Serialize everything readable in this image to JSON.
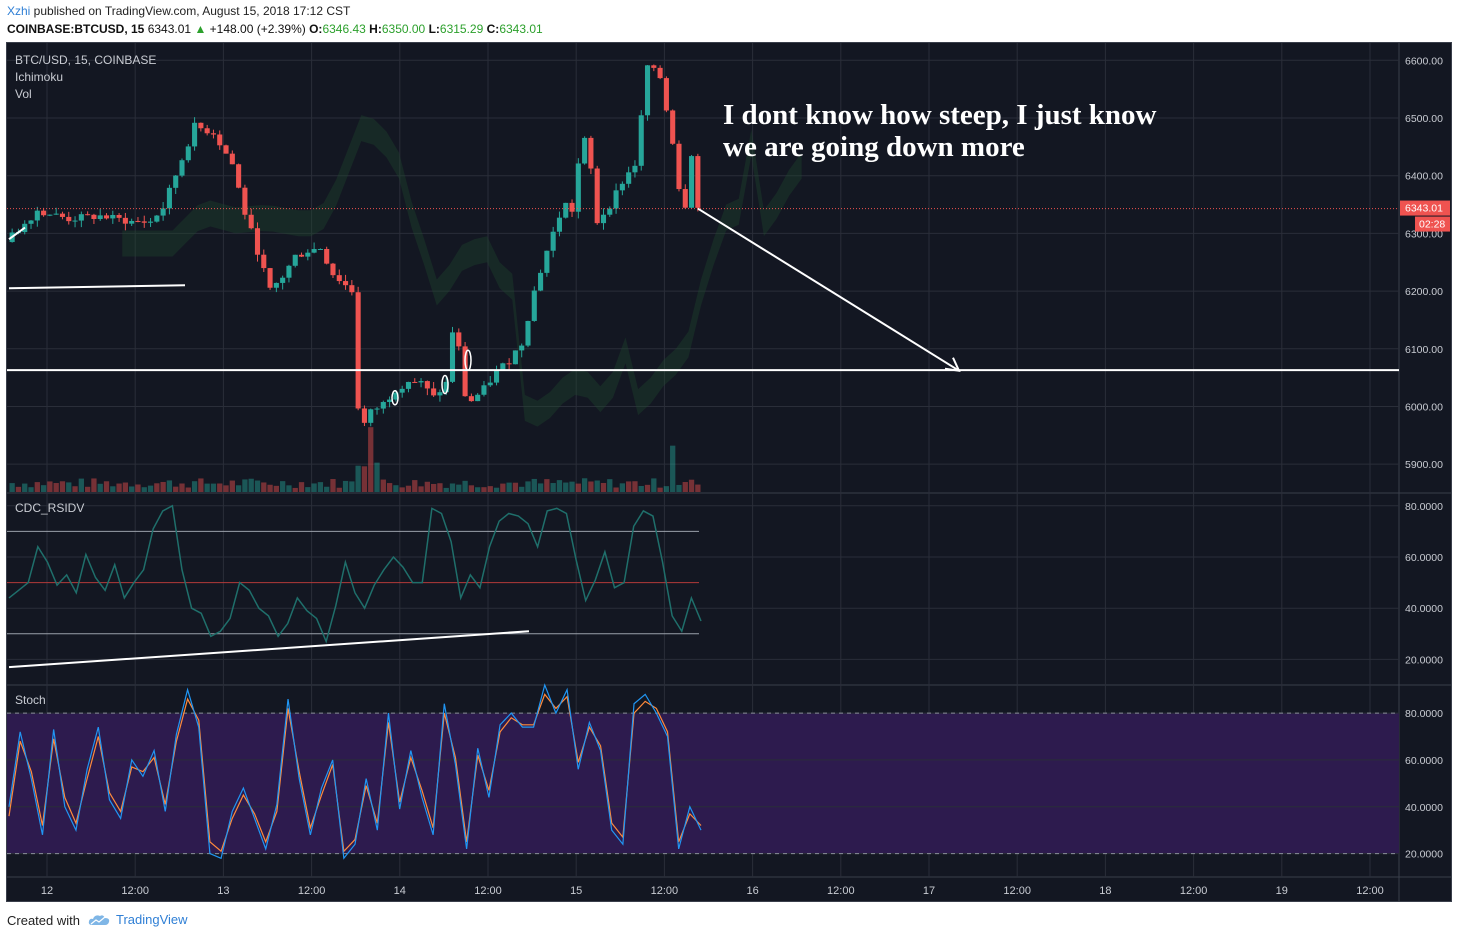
{
  "header": {
    "author": "Xzhi",
    "published": " published on TradingView.com, August 15, 2018 17:12 CST",
    "symbol": "COINBASE:BTCUSD, 15",
    "last": "6343.01",
    "change": "+148.00 (+2.39%)",
    "o_label": "O:",
    "o": "6346.43",
    "h_label": "H:",
    "h": "6350.00",
    "l_label": "L:",
    "l": "6315.29",
    "c_label": "C:",
    "c": "6343.01"
  },
  "panes": {
    "main_title": "BTC/USD, 15, COINBASE",
    "ichimoku": "Ichimoku",
    "vol": "Vol",
    "rsi": "CDC_RSIDV",
    "stoch": "Stoch"
  },
  "annotation": {
    "line1": "I dont know how steep, I just know",
    "line2": "we are going down more"
  },
  "price_badge": "6343.01",
  "countdown_badge": "02:28",
  "footer": {
    "created": "Created with",
    "brand": "TradingView"
  },
  "colors": {
    "background": "#131722",
    "grid": "#2a2e39",
    "bull": "#26a69a",
    "bear": "#ef5350",
    "stoch_band": "#2d1b4e",
    "stoch_k": "#2196f3",
    "stoch_d": "#ff8a3c",
    "rsi_line": "#1f6f6b",
    "annotation": "#ffffff",
    "badge": "#ef5350"
  },
  "chart_data": [
    {
      "type": "candlestick",
      "title": "BTC/USD, 15, COINBASE",
      "x_tick_labels": [
        "12",
        "12:00",
        "13",
        "12:00",
        "14",
        "12:00",
        "15",
        "12:00",
        "16",
        "12:00",
        "17",
        "12:00",
        "18",
        "12:00",
        "19",
        "12:00"
      ],
      "y_tick_labels": [
        "6600.00",
        "6500.00",
        "6400.00",
        "6300.00",
        "6200.00",
        "6100.00",
        "6000.00",
        "5900.00"
      ],
      "ylim": [
        5850,
        6630
      ],
      "last_price": 6343.01,
      "close_path": [
        [
          0,
          6285
        ],
        [
          5,
          6340
        ],
        [
          10,
          6325
        ],
        [
          15,
          6330
        ],
        [
          20,
          6320
        ],
        [
          23,
          6320
        ],
        [
          25,
          6345
        ],
        [
          30,
          6485
        ],
        [
          33,
          6475
        ],
        [
          36,
          6420
        ],
        [
          38,
          6335
        ],
        [
          40,
          6270
        ],
        [
          42,
          6200
        ],
        [
          44,
          6225
        ],
        [
          46,
          6260
        ],
        [
          48,
          6270
        ],
        [
          50,
          6275
        ],
        [
          52,
          6230
        ],
        [
          55,
          6200
        ],
        [
          56,
          6000
        ],
        [
          57,
          5970
        ],
        [
          58,
          5990
        ],
        [
          60,
          6005
        ],
        [
          62,
          6030
        ],
        [
          64,
          6045
        ],
        [
          66,
          6040
        ],
        [
          68,
          6015
        ],
        [
          70,
          6040
        ],
        [
          71,
          6130
        ],
        [
          72,
          6100
        ],
        [
          73,
          6020
        ],
        [
          74,
          6010
        ],
        [
          76,
          6030
        ],
        [
          78,
          6060
        ],
        [
          80,
          6080
        ],
        [
          82,
          6110
        ],
        [
          84,
          6200
        ],
        [
          86,
          6270
        ],
        [
          88,
          6330
        ],
        [
          89,
          6350
        ],
        [
          90,
          6340
        ],
        [
          91,
          6420
        ],
        [
          92,
          6460
        ],
        [
          93,
          6410
        ],
        [
          94,
          6320
        ],
        [
          96,
          6350
        ],
        [
          98,
          6390
        ],
        [
          100,
          6420
        ],
        [
          101,
          6500
        ],
        [
          102,
          6590
        ],
        [
          104,
          6570
        ],
        [
          106,
          6460
        ],
        [
          107,
          6380
        ],
        [
          108,
          6350
        ],
        [
          109,
          6440
        ],
        [
          110,
          6343
        ]
      ],
      "horizontal_lines": [
        6063
      ],
      "trendline_projection": {
        "from": [
          110,
          6343
        ],
        "to": [
          136,
          6062
        ]
      }
    },
    {
      "type": "line",
      "title": "CDC_RSIDV",
      "y_tick_labels": [
        "80.0000",
        "60.0000",
        "40.0000",
        "20.0000"
      ],
      "ylim": [
        10,
        85
      ],
      "levels": [
        70,
        50,
        30
      ],
      "values": [
        44,
        47,
        50,
        64,
        58,
        49,
        53,
        46,
        61,
        52,
        47,
        57,
        44,
        50,
        55,
        71,
        78,
        80,
        55,
        40,
        38,
        29,
        31,
        36,
        50,
        47,
        40,
        37,
        29,
        34,
        44,
        39,
        36,
        27,
        41,
        58,
        46,
        40,
        49,
        55,
        60,
        56,
        50,
        50,
        79,
        77,
        66,
        44,
        53,
        48,
        64,
        74,
        77,
        76,
        73,
        64,
        78,
        79,
        77,
        59,
        43,
        51,
        62,
        48,
        50,
        72,
        78,
        76,
        58,
        37,
        31,
        44,
        35
      ]
    },
    {
      "type": "line",
      "title": "Stoch",
      "y_tick_labels": [
        "80.0000",
        "60.0000",
        "40.0000",
        "20.0000"
      ],
      "ylim": [
        10,
        92
      ],
      "band": [
        20,
        80
      ],
      "series": [
        {
          "values": [
            40,
            72,
            52,
            28,
            73,
            40,
            30,
            56,
            74,
            43,
            35,
            60,
            53,
            64,
            38,
            71,
            90,
            74,
            20,
            18,
            38,
            48,
            35,
            22,
            41,
            86,
            52,
            28,
            48,
            60,
            18,
            24,
            52,
            30,
            80,
            39,
            64,
            44,
            28,
            84,
            58,
            22,
            65,
            44,
            75,
            80,
            74,
            74,
            92,
            80,
            90,
            56,
            76,
            64,
            30,
            24,
            84,
            88,
            80,
            70,
            22,
            40,
            30
          ]
        },
        {
          "values": [
            36,
            68,
            55,
            32,
            69,
            44,
            33,
            52,
            70,
            46,
            38,
            57,
            55,
            61,
            41,
            68,
            86,
            77,
            25,
            21,
            35,
            45,
            37,
            25,
            38,
            82,
            55,
            31,
            45,
            58,
            21,
            26,
            49,
            33,
            76,
            42,
            61,
            47,
            31,
            80,
            61,
            25,
            62,
            47,
            72,
            78,
            75,
            75,
            88,
            82,
            87,
            59,
            74,
            66,
            33,
            27,
            80,
            85,
            82,
            72,
            25,
            37,
            32
          ]
        }
      ]
    }
  ]
}
